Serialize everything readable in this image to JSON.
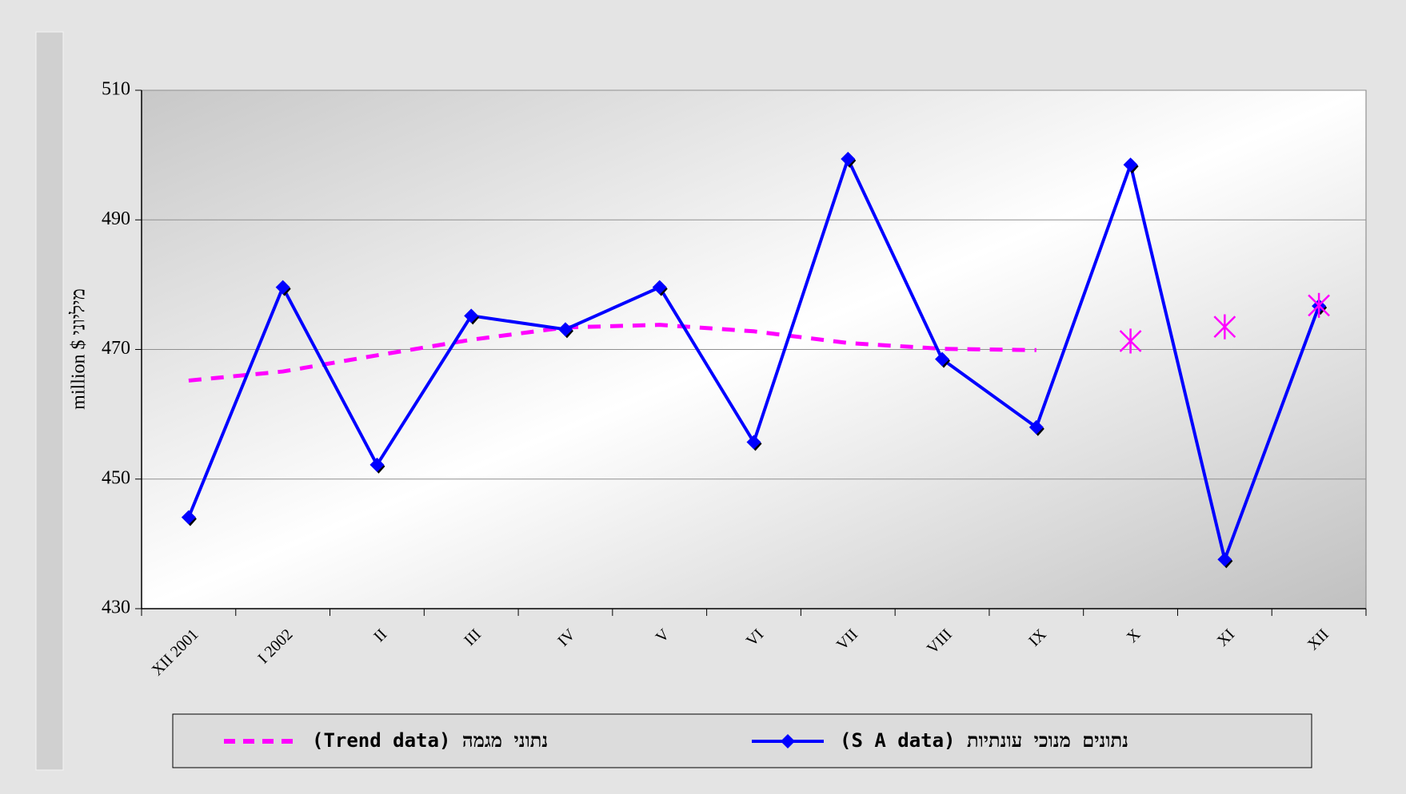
{
  "chart_data": {
    "type": "line",
    "ylabel": "million $ מיליוני",
    "categories": [
      "XII 2001",
      "I 2002",
      "II",
      "III",
      "IV",
      "V",
      "VI",
      "VII",
      "VIII",
      "IX",
      "X",
      "XI",
      "XII"
    ],
    "series": [
      {
        "name": "(Trend data) נתוני מגמה",
        "color": "#ff00ff",
        "dash": true,
        "values": [
          465.2,
          466.6,
          469.1,
          471.5,
          473.4,
          473.8,
          472.8,
          471.0,
          470.1,
          469.9,
          null,
          null,
          null
        ]
      },
      {
        "name": "(S A data) נתונים מנוכי עונתיות",
        "color": "#0000ff",
        "marker": "diamond",
        "values": [
          444.1,
          479.6,
          452.2,
          475.2,
          473.1,
          479.6,
          455.7,
          499.4,
          468.5,
          458.0,
          498.5,
          437.6,
          476.7
        ]
      },
      {
        "color": "#ff00ff",
        "marker": "asterisk",
        "values": [
          null,
          null,
          null,
          null,
          null,
          null,
          null,
          null,
          null,
          null,
          471.3,
          473.5,
          476.8
        ]
      }
    ],
    "ylim": [
      430,
      510
    ],
    "yticks": [
      430,
      450,
      470,
      490,
      510
    ],
    "grid": true
  }
}
